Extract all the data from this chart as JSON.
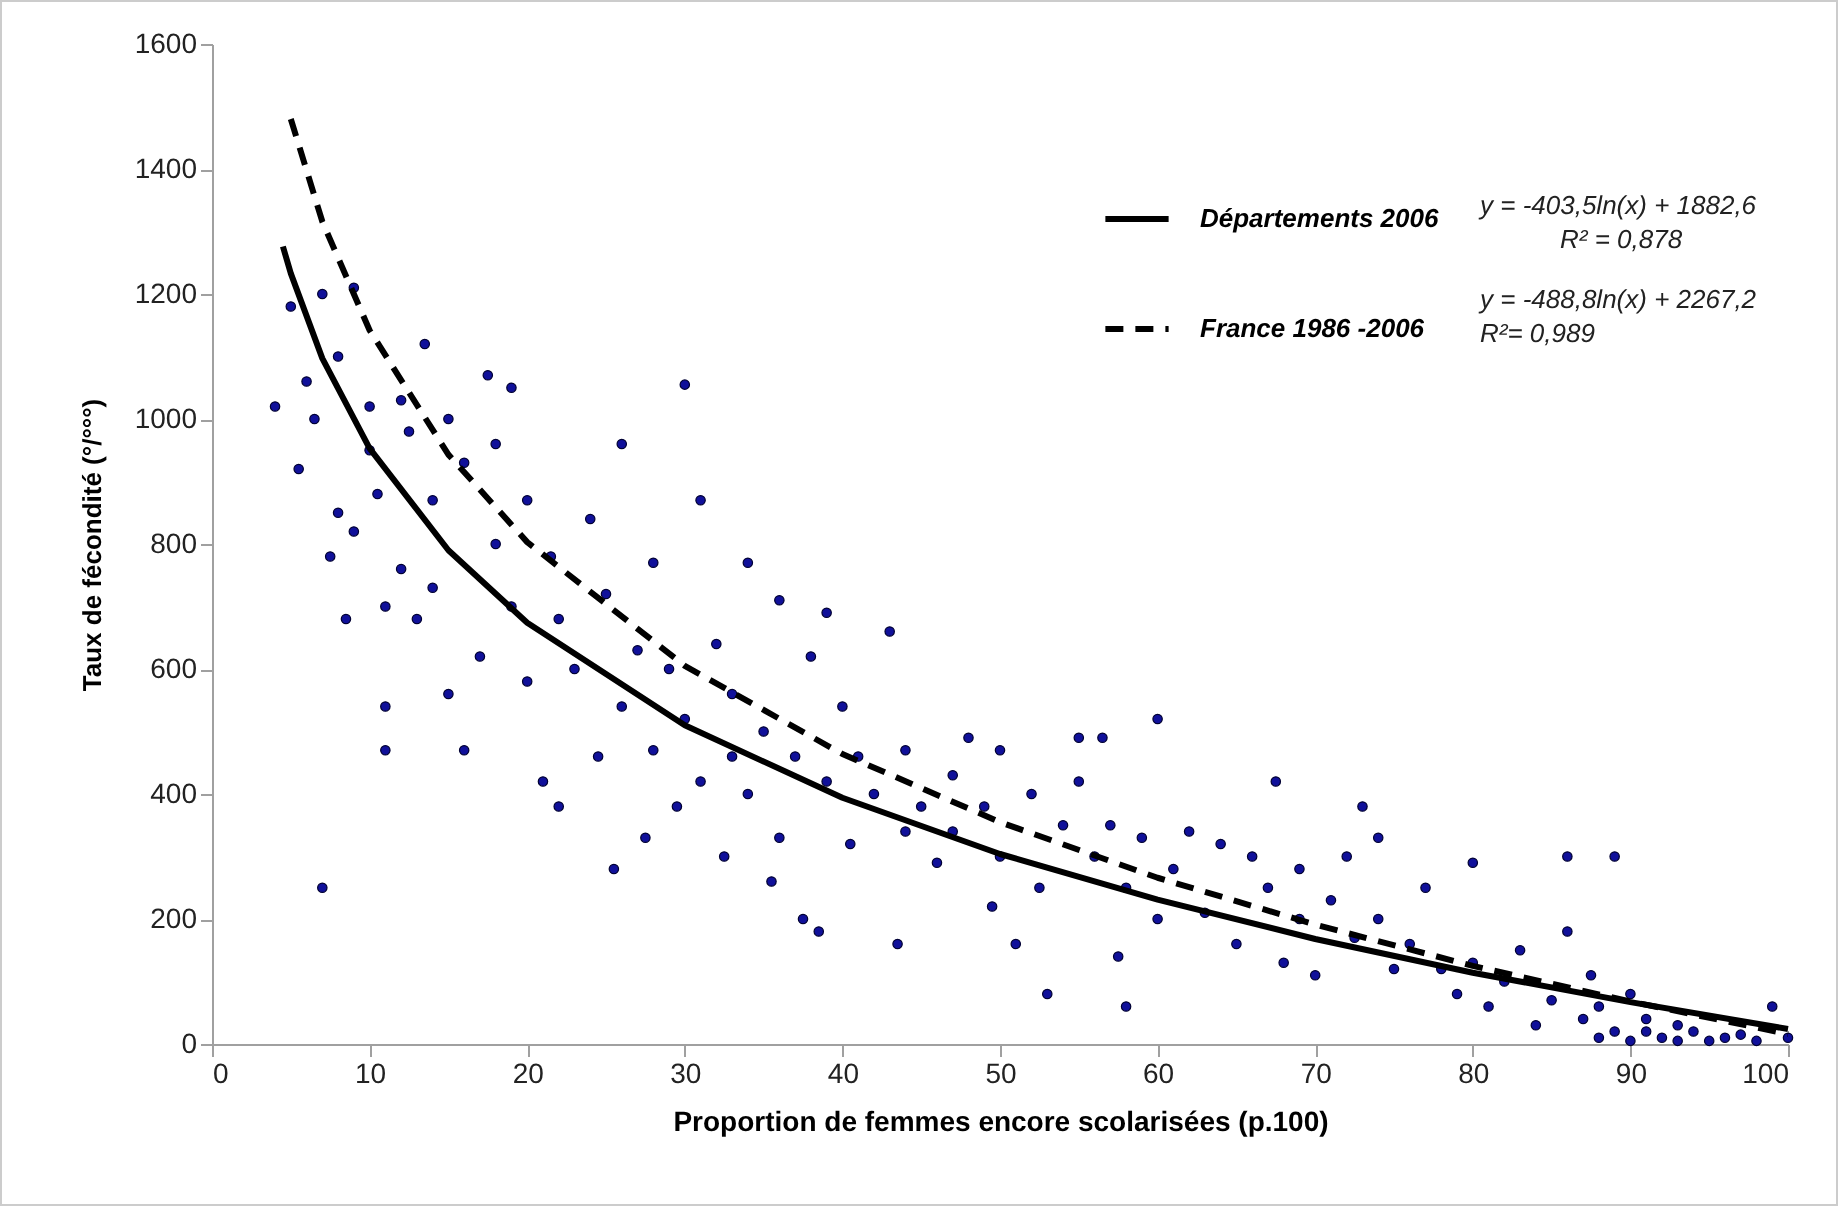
{
  "chart_data": {
    "type": "scatter",
    "xlabel": "Proportion de femmes encore scolarisées (p.100)",
    "ylabel": "Taux de fécondité (°/°°°)",
    "xlim": [
      0,
      100
    ],
    "xticks": [
      0,
      10,
      20,
      30,
      40,
      50,
      60,
      70,
      80,
      90,
      100
    ],
    "ylim": [
      0,
      1600
    ],
    "yticks": [
      0,
      200,
      400,
      600,
      800,
      1000,
      1200,
      1400,
      1600
    ],
    "grid": false,
    "legend": "top right",
    "annotations": [
      "y = -403,5ln(x) + 1882,6",
      "R² = 0,878",
      "y = -488,8ln(x) + 2267,2",
      "R²= 0,989"
    ],
    "series": [
      {
        "marker": "circle",
        "color": "#10109a",
        "x": [
          4,
          5,
          5.5,
          6,
          6.5,
          7,
          7,
          7.5,
          8,
          8,
          8.5,
          9,
          9,
          10,
          10,
          10.5,
          11,
          11,
          11,
          12,
          12,
          12.5,
          13,
          13.5,
          14,
          14,
          15,
          15,
          16,
          16,
          17,
          17.5,
          18,
          18,
          19,
          19,
          20,
          20,
          21,
          21.5,
          22,
          22,
          23,
          24,
          24.5,
          25,
          25.5,
          26,
          26,
          27,
          27.5,
          28,
          28,
          29,
          29.5,
          30,
          30,
          31,
          31,
          32,
          32.5,
          33,
          33,
          34,
          34,
          35,
          35.5,
          36,
          36,
          37,
          37.5,
          38,
          38.5,
          39,
          39,
          40,
          40.5,
          41,
          42,
          43,
          43.5,
          44,
          44,
          45,
          46,
          47,
          47,
          48,
          49,
          49.5,
          50,
          50,
          51,
          52,
          52.5,
          53,
          54,
          55,
          55,
          56,
          56.5,
          57,
          57.5,
          58,
          58,
          59,
          60,
          60,
          61,
          62,
          63,
          64,
          65,
          66,
          67,
          67.5,
          68,
          69,
          69,
          70,
          71,
          72,
          72.5,
          73,
          74,
          74,
          75,
          76,
          77,
          78,
          79,
          80,
          80,
          81,
          82,
          83,
          84,
          85,
          86,
          86,
          87,
          87.5,
          88,
          88,
          89,
          89,
          90,
          90,
          91,
          91,
          92,
          93,
          93,
          94,
          95,
          96,
          97,
          98,
          99,
          100
        ],
        "values": [
          1020,
          1180,
          920,
          1060,
          1000,
          250,
          1200,
          780,
          850,
          1100,
          680,
          1210,
          820,
          1020,
          950,
          880,
          470,
          540,
          700,
          1030,
          760,
          980,
          680,
          1120,
          870,
          730,
          1000,
          560,
          930,
          470,
          620,
          1070,
          960,
          800,
          700,
          1050,
          870,
          580,
          420,
          780,
          380,
          680,
          600,
          840,
          460,
          720,
          280,
          960,
          540,
          630,
          330,
          770,
          470,
          600,
          380,
          1055,
          520,
          870,
          420,
          640,
          300,
          560,
          460,
          770,
          400,
          500,
          260,
          710,
          330,
          460,
          200,
          620,
          180,
          690,
          420,
          540,
          320,
          460,
          400,
          660,
          160,
          470,
          340,
          380,
          290,
          430,
          340,
          490,
          380,
          220,
          470,
          300,
          160,
          400,
          250,
          80,
          350,
          490,
          420,
          300,
          490,
          350,
          140,
          60,
          250,
          330,
          520,
          200,
          280,
          340,
          210,
          320,
          160,
          300,
          250,
          420,
          130,
          200,
          280,
          110,
          230,
          300,
          170,
          380,
          330,
          200,
          120,
          160,
          250,
          120,
          80,
          290,
          130,
          60,
          100,
          150,
          30,
          70,
          300,
          180,
          40,
          110,
          10,
          60,
          300,
          20,
          80,
          5,
          20,
          40,
          10,
          5,
          30,
          20,
          5,
          10,
          15,
          5,
          60,
          10
        ]
      },
      {
        "type": "line",
        "name": "Départements 2006",
        "color": "#000000",
        "line_style": "solid",
        "marker": "none",
        "x": [
          4.5,
          5,
          7,
          10,
          15,
          20,
          30,
          40,
          50,
          60,
          70,
          80,
          90,
          100
        ],
        "values": [
          1276,
          1233,
          1097,
          953,
          790,
          674,
          510,
          394,
          304,
          231,
          168,
          114,
          67,
          24
        ]
      },
      {
        "type": "line",
        "name": "France 1986 -2006",
        "color": "#000000",
        "line_style": "dashed",
        "marker": "none",
        "x": [
          5,
          7,
          10,
          15,
          20,
          30,
          40,
          50,
          60,
          70,
          80,
          90,
          100
        ],
        "values": [
          1480,
          1316,
          1142,
          943,
          803,
          605,
          464,
          355,
          266,
          191,
          125,
          68,
          16
        ]
      }
    ]
  }
}
